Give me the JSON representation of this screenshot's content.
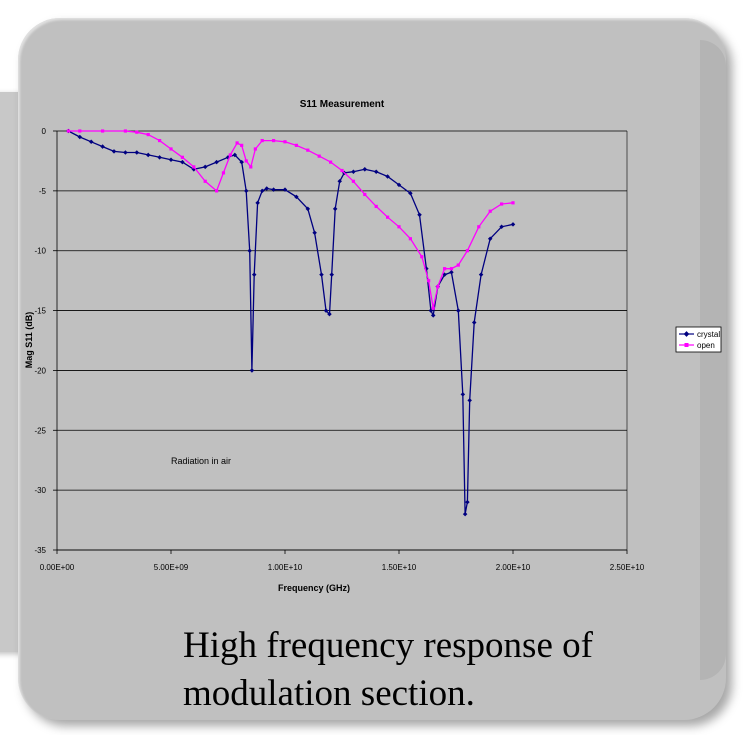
{
  "caption": {
    "line1": "High frequency response of",
    "line2": "modulation section."
  },
  "chart_data": {
    "type": "line",
    "title": "S11 Measurement",
    "xlabel": "Frequency (GHz)",
    "ylabel": "Mag S11 (dB)",
    "xlim": [
      0,
      25000000000
    ],
    "ylim": [
      -35,
      0
    ],
    "x_ticks": [
      0,
      5000000000,
      10000000000,
      15000000000,
      20000000000,
      25000000000
    ],
    "x_tick_labels": [
      "0.00E+00",
      "5.00E+09",
      "1.00E+10",
      "1.50E+10",
      "2.00E+10",
      "2.50E+10"
    ],
    "y_ticks": [
      0,
      -5,
      -10,
      -15,
      -20,
      -25,
      -30,
      -35
    ],
    "y_tick_labels": [
      "0",
      "-5",
      "-10",
      "-15",
      "-20",
      "-25",
      "-30",
      "-35"
    ],
    "grid": "horizontal",
    "legend_position": "right",
    "plot_background": "#c0c0c0",
    "annotation": {
      "text": "Radiation in air",
      "x": 5000000000,
      "y": -27.8
    },
    "series": [
      {
        "name": "crystal",
        "color": "#000080",
        "marker": "diamond",
        "x": [
          500000000.0,
          1000000000.0,
          1500000000.0,
          2000000000.0,
          2500000000.0,
          3000000000.0,
          3500000000.0,
          4000000000.0,
          4500000000.0,
          5000000000.0,
          5500000000.0,
          6000000000.0,
          6500000000.0,
          7000000000.0,
          7500000000.0,
          7800000000.0,
          8100000000.0,
          8300000000.0,
          8450000000.0,
          8550000000.0,
          8650000000.0,
          8800000000.0,
          9000000000.0,
          9200000000.0,
          9500000000.0,
          10000000000.0,
          10500000000.0,
          11000000000.0,
          11300000000.0,
          11600000000.0,
          11800000000.0,
          11950000000.0,
          12050000000.0,
          12200000000.0,
          12400000000.0,
          12600000000.0,
          13000000000.0,
          13500000000.0,
          14000000000.0,
          14500000000.0,
          15000000000.0,
          15500000000.0,
          15900000000.0,
          16200000000.0,
          16400000000.0,
          16500000000.0,
          16700000000.0,
          17000000000.0,
          17300000000.0,
          17600000000.0,
          17800000000.0,
          17900000000.0,
          18000000000.0,
          18100000000.0,
          18300000000.0,
          18600000000.0,
          19000000000.0,
          19500000000.0,
          20000000000.0
        ],
        "y": [
          0,
          -0.5,
          -0.9,
          -1.3,
          -1.7,
          -1.8,
          -1.8,
          -2.0,
          -2.2,
          -2.4,
          -2.6,
          -3.2,
          -3.0,
          -2.6,
          -2.2,
          -2.0,
          -2.6,
          -5.0,
          -10.0,
          -20.0,
          -12.0,
          -6.0,
          -5.0,
          -4.8,
          -4.9,
          -4.9,
          -5.5,
          -6.5,
          -8.5,
          -12.0,
          -15.0,
          -15.3,
          -12.0,
          -6.5,
          -4.2,
          -3.5,
          -3.4,
          -3.2,
          -3.4,
          -3.8,
          -4.5,
          -5.2,
          -7.0,
          -11.5,
          -15.0,
          -15.4,
          -13.0,
          -12.0,
          -11.8,
          -15.0,
          -22.0,
          -32.0,
          -31.0,
          -22.5,
          -16.0,
          -12.0,
          -9.0,
          -8.0,
          -7.8
        ]
      },
      {
        "name": "open",
        "color": "#ff00ff",
        "marker": "square",
        "x": [
          500000000.0,
          1000000000.0,
          2000000000.0,
          3000000000.0,
          3500000000.0,
          4000000000.0,
          4500000000.0,
          5000000000.0,
          5500000000.0,
          6000000000.0,
          6500000000.0,
          7000000000.0,
          7300000000.0,
          7600000000.0,
          7900000000.0,
          8100000000.0,
          8300000000.0,
          8500000000.0,
          8700000000.0,
          9000000000.0,
          9500000000.0,
          10000000000.0,
          10500000000.0,
          11000000000.0,
          11500000000.0,
          12000000000.0,
          12500000000.0,
          13000000000.0,
          13500000000.0,
          14000000000.0,
          14500000000.0,
          15000000000.0,
          15500000000.0,
          16000000000.0,
          16300000000.0,
          16500000000.0,
          16700000000.0,
          17000000000.0,
          17300000000.0,
          17600000000.0,
          18000000000.0,
          18500000000.0,
          19000000000.0,
          19500000000.0,
          20000000000.0
        ],
        "y": [
          0,
          0,
          0,
          0,
          -0.1,
          -0.3,
          -0.8,
          -1.5,
          -2.2,
          -3.0,
          -4.2,
          -5.0,
          -3.5,
          -2.0,
          -1.0,
          -1.2,
          -2.5,
          -3.0,
          -1.5,
          -0.8,
          -0.8,
          -0.9,
          -1.2,
          -1.6,
          -2.1,
          -2.6,
          -3.3,
          -4.2,
          -5.3,
          -6.3,
          -7.2,
          -8.0,
          -9.0,
          -10.5,
          -12.5,
          -14.8,
          -13.0,
          -11.5,
          -11.5,
          -11.2,
          -10.0,
          -8.0,
          -6.7,
          -6.1,
          -6.0
        ]
      }
    ]
  }
}
